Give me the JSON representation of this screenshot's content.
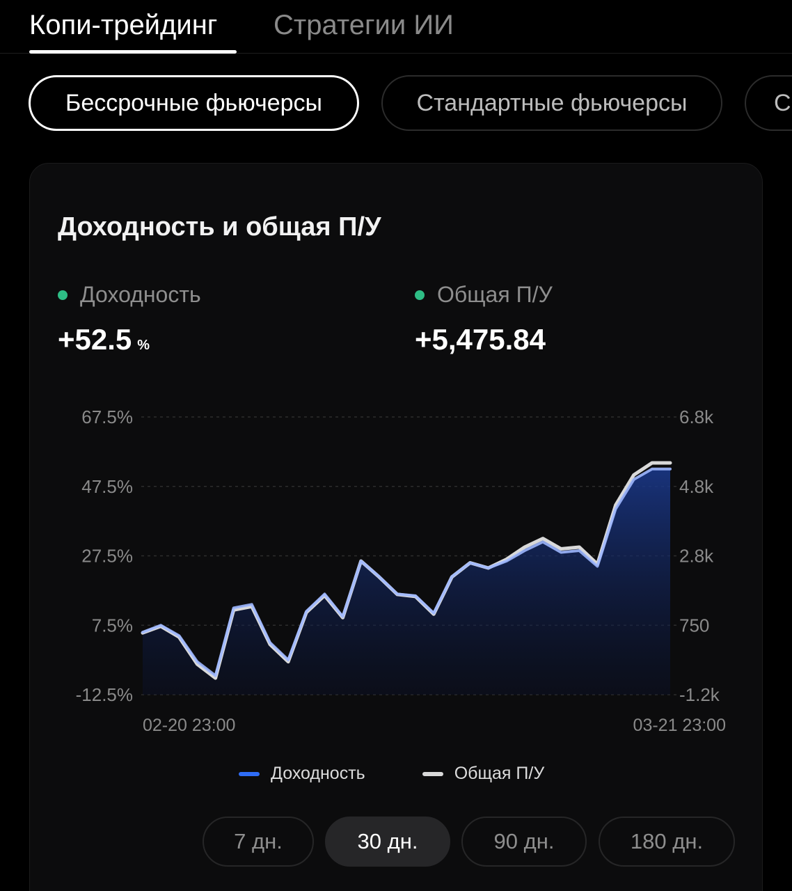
{
  "top_tabs": [
    {
      "label": "Копи-трейдинг",
      "active": true
    },
    {
      "label": "Стратегии ИИ",
      "active": false
    }
  ],
  "filters": [
    {
      "label": "Бессрочные фьючерсы",
      "active": true
    },
    {
      "label": "Стандартные фьючерсы",
      "active": false
    },
    {
      "label": "С",
      "active": false
    }
  ],
  "card": {
    "title": "Доходность и общая П/У",
    "metrics": [
      {
        "label": "Доходность",
        "value": "+52.5",
        "unit": "%"
      },
      {
        "label": "Общая П/У",
        "value": "+5,475.84"
      }
    ]
  },
  "chart_data": {
    "type": "line",
    "x_start_label": "02-20 23:00",
    "x_end_label": "03-21 23:00",
    "y_left_ticks": [
      "67.5%",
      "47.5%",
      "27.5%",
      "7.5%",
      "-12.5%"
    ],
    "y_right_ticks": [
      "6.8k",
      "4.8k",
      "2.8k",
      "750",
      "-1.2k"
    ],
    "ylim_left": [
      -12.5,
      67.5
    ],
    "grid": "dashed horizontal",
    "series": [
      {
        "name": "Доходность",
        "axis": "left",
        "color": "#2f6df6",
        "values": [
          5.5,
          7.5,
          4.5,
          -3.0,
          -7.0,
          12.5,
          13.5,
          2.5,
          -2.5,
          11.5,
          16.5,
          10.0,
          26.0,
          21.5,
          16.5,
          16.0,
          11.0,
          21.5,
          25.5,
          24.0,
          26.0,
          29.0,
          31.5,
          28.5,
          29.0,
          24.5,
          41.0,
          49.5,
          52.5,
          52.5
        ]
      },
      {
        "name": "Общая П/У",
        "axis": "right",
        "color": "#d9d9d9",
        "values": [
          580,
          770,
          460,
          -320,
          -720,
          1240,
          1340,
          250,
          -250,
          1170,
          1660,
          1020,
          2650,
          2190,
          1690,
          1630,
          1120,
          2190,
          2600,
          2450,
          2700,
          3050,
          3300,
          3000,
          3050,
          2560,
          4260,
          5130,
          5476,
          5476
        ]
      }
    ]
  },
  "legend": [
    {
      "label": "Доходность",
      "color": "#2f6df6"
    },
    {
      "label": "Общая П/У",
      "color": "#d9d9d9"
    }
  ],
  "periods": [
    {
      "label": "7 дн.",
      "active": false
    },
    {
      "label": "30 дн.",
      "active": true
    },
    {
      "label": "90 дн.",
      "active": false
    },
    {
      "label": "180 дн.",
      "active": false
    }
  ]
}
